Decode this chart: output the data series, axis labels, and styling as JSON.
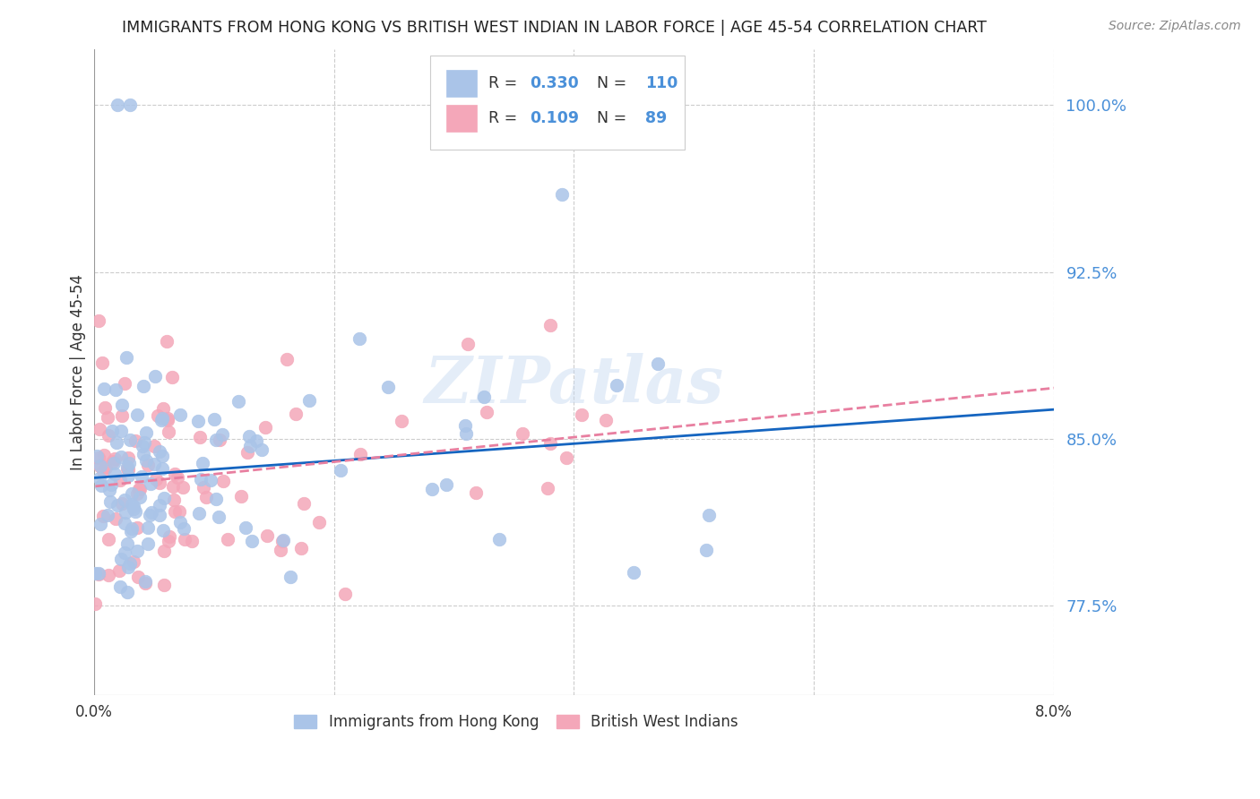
{
  "title": "IMMIGRANTS FROM HONG KONG VS BRITISH WEST INDIAN IN LABOR FORCE | AGE 45-54 CORRELATION CHART",
  "source": "Source: ZipAtlas.com",
  "ylabel": "In Labor Force | Age 45-54",
  "xlim": [
    0.0,
    0.08
  ],
  "ylim": [
    0.735,
    1.025
  ],
  "yticks": [
    0.775,
    0.85,
    0.925,
    1.0
  ],
  "ytick_labels": [
    "77.5%",
    "85.0%",
    "92.5%",
    "100.0%"
  ],
  "xticks": [
    0.0,
    0.02,
    0.04,
    0.06,
    0.08
  ],
  "xtick_labels": [
    "0.0%",
    "",
    "",
    "",
    "8.0%"
  ],
  "hk_R": 0.33,
  "hk_N": 110,
  "bwi_R": 0.109,
  "bwi_N": 89,
  "hk_color": "#aac4e8",
  "bwi_color": "#f4a7b9",
  "hk_line_color": "#1565c0",
  "bwi_line_color": "#e87fa0",
  "legend_label_hk": "Immigrants from Hong Kong",
  "legend_label_bwi": "British West Indians",
  "watermark": "ZIPatlas",
  "legend_text_color": "#4a90d9",
  "title_color": "#222222",
  "source_color": "#888888",
  "grid_color": "#cccccc",
  "ylabel_color": "#333333"
}
